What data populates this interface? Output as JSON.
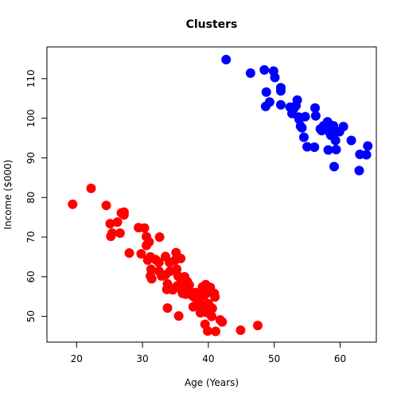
{
  "chart_data": {
    "type": "scatter",
    "title": "Clusters",
    "xlabel": "Age (Years)",
    "ylabel": "Income ($000)",
    "xlim": [
      15.5,
      65.5
    ],
    "ylim": [
      43.5,
      118
    ],
    "xticks": [
      20,
      30,
      40,
      50,
      60
    ],
    "yticks": [
      50,
      60,
      70,
      80,
      90,
      100,
      110
    ],
    "grid": false,
    "legend": "none",
    "colors": {
      "cluster_1": "#ff0000",
      "cluster_2": "#0000ff"
    },
    "series": [
      {
        "color": "#ff0000",
        "points": [
          [
            19.4,
            78.3
          ],
          [
            22.2,
            82.3
          ],
          [
            24.5,
            78.0
          ],
          [
            25.1,
            73.4
          ],
          [
            25.2,
            70.2
          ],
          [
            25.4,
            71.0
          ],
          [
            26.2,
            73.8
          ],
          [
            26.6,
            71.0
          ],
          [
            26.8,
            76.1
          ],
          [
            27.2,
            75.6
          ],
          [
            27.2,
            76.3
          ],
          [
            28.0,
            66.0
          ],
          [
            29.4,
            72.4
          ],
          [
            29.8,
            65.8
          ],
          [
            30.3,
            72.3
          ],
          [
            30.6,
            70.1
          ],
          [
            30.6,
            67.9
          ],
          [
            31.0,
            68.8
          ],
          [
            30.8,
            64.2
          ],
          [
            31.2,
            65.0
          ],
          [
            31.3,
            61.9
          ],
          [
            31.2,
            60.2
          ],
          [
            31.4,
            59.5
          ],
          [
            32.0,
            64.3
          ],
          [
            32.5,
            61.4
          ],
          [
            32.6,
            70.0
          ],
          [
            32.5,
            63.6
          ],
          [
            32.9,
            60.2
          ],
          [
            33.5,
            65.1
          ],
          [
            33.5,
            60.5
          ],
          [
            33.8,
            58.2
          ],
          [
            33.7,
            56.8
          ],
          [
            33.8,
            52.1
          ],
          [
            34.1,
            63.6
          ],
          [
            34.2,
            61.4
          ],
          [
            34.3,
            57.1
          ],
          [
            34.6,
            56.7
          ],
          [
            34.9,
            64.1
          ],
          [
            35.1,
            66.1
          ],
          [
            35.2,
            61.9
          ],
          [
            35.4,
            60.2
          ],
          [
            35.3,
            57.7
          ],
          [
            35.5,
            50.1
          ],
          [
            35.8,
            64.6
          ],
          [
            35.9,
            58.8
          ],
          [
            36.0,
            56.4
          ],
          [
            36.1,
            55.8
          ],
          [
            36.4,
            60.0
          ],
          [
            36.5,
            57.1
          ],
          [
            36.6,
            55.6
          ],
          [
            36.8,
            58.8
          ],
          [
            37.1,
            57.9
          ],
          [
            37.3,
            56.2
          ],
          [
            37.6,
            55.2
          ],
          [
            37.7,
            52.4
          ],
          [
            37.9,
            54.8
          ],
          [
            38.1,
            56.0
          ],
          [
            38.3,
            55.1
          ],
          [
            38.5,
            54.0
          ],
          [
            38.7,
            52.4
          ],
          [
            38.8,
            50.9
          ],
          [
            39.1,
            57.4
          ],
          [
            39.2,
            56.2
          ],
          [
            39.3,
            52.9
          ],
          [
            39.4,
            55.3
          ],
          [
            39.6,
            58.0
          ],
          [
            39.7,
            51.0
          ],
          [
            39.5,
            48.0
          ],
          [
            39.9,
            46.3
          ],
          [
            40.0,
            53.2
          ],
          [
            40.1,
            56.1
          ],
          [
            40.2,
            52.6
          ],
          [
            40.3,
            57.3
          ],
          [
            40.5,
            50.0
          ],
          [
            40.6,
            52.0
          ],
          [
            40.9,
            55.8
          ],
          [
            41.0,
            54.9
          ],
          [
            41.1,
            46.2
          ],
          [
            41.8,
            49.1
          ],
          [
            42.1,
            48.6
          ],
          [
            44.9,
            46.5
          ],
          [
            47.5,
            47.7
          ]
        ]
      },
      {
        "color": "#0000ff",
        "points": [
          [
            42.7,
            114.8
          ],
          [
            46.4,
            111.4
          ],
          [
            48.5,
            112.2
          ],
          [
            48.8,
            106.6
          ],
          [
            48.7,
            103.0
          ],
          [
            49.3,
            104.1
          ],
          [
            49.9,
            111.9
          ],
          [
            50.1,
            110.3
          ],
          [
            51.0,
            107.7
          ],
          [
            51.0,
            106.9
          ],
          [
            51.0,
            103.4
          ],
          [
            52.4,
            102.8
          ],
          [
            52.7,
            101.2
          ],
          [
            53.0,
            102.5
          ],
          [
            53.3,
            103.2
          ],
          [
            53.5,
            104.6
          ],
          [
            53.7,
            100.3
          ],
          [
            53.8,
            99.7
          ],
          [
            54.0,
            98.0
          ],
          [
            54.2,
            97.6
          ],
          [
            54.5,
            95.2
          ],
          [
            54.7,
            100.4
          ],
          [
            55.0,
            92.8
          ],
          [
            56.2,
            102.6
          ],
          [
            56.3,
            100.6
          ],
          [
            56.1,
            92.7
          ],
          [
            57.0,
            97.3
          ],
          [
            57.2,
            96.9
          ],
          [
            57.5,
            98.1
          ],
          [
            57.7,
            97.5
          ],
          [
            58.1,
            99.1
          ],
          [
            58.3,
            98.6
          ],
          [
            58.4,
            96.5
          ],
          [
            58.6,
            95.7
          ],
          [
            58.8,
            97.3
          ],
          [
            58.9,
            96.0
          ],
          [
            59.0,
            98.1
          ],
          [
            59.3,
            94.4
          ],
          [
            59.4,
            92.1
          ],
          [
            58.2,
            92.0
          ],
          [
            59.1,
            87.8
          ],
          [
            59.9,
            96.6
          ],
          [
            60.5,
            97.9
          ],
          [
            61.7,
            94.4
          ],
          [
            63.0,
            90.9
          ],
          [
            62.9,
            86.8
          ],
          [
            64.0,
            90.8
          ],
          [
            64.2,
            93.0
          ]
        ]
      }
    ]
  }
}
